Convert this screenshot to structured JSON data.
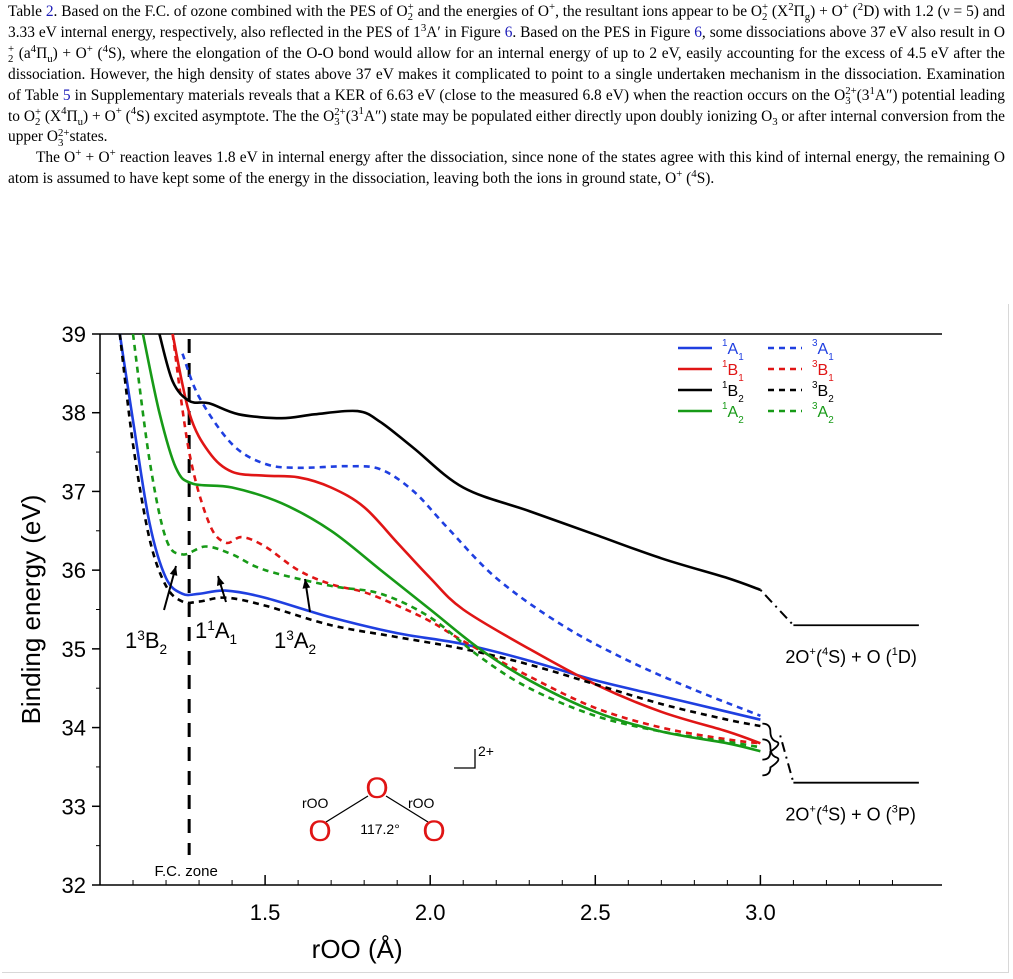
{
  "paragraphs": [
    [
      {
        "t": "text",
        "v": "Table "
      },
      {
        "t": "ref",
        "v": "2"
      },
      {
        "t": "text",
        "v": ". Based on the F.C. of ozone combined with the PES of O"
      },
      {
        "t": "subsup",
        "sub": "2",
        "sup": "+"
      },
      {
        "t": "text",
        "v": " and the energies of O"
      },
      {
        "t": "sup",
        "v": "+"
      },
      {
        "t": "text",
        "v": ", the resultant ions appear to be O"
      },
      {
        "t": "subsup",
        "sub": "2",
        "sup": "+"
      },
      {
        "t": "text",
        "v": " (X"
      },
      {
        "t": "sup",
        "v": "2"
      },
      {
        "t": "text",
        "v": "Π"
      },
      {
        "t": "sub",
        "v": "g"
      },
      {
        "t": "text",
        "v": ") + O"
      },
      {
        "t": "sup",
        "v": "+"
      },
      {
        "t": "text",
        "v": " ("
      },
      {
        "t": "sup",
        "v": "2"
      },
      {
        "t": "text",
        "v": "D) with 1.2 (ν = 5) and 3.33 eV internal energy, respectively, also reflected in the PES of 1"
      },
      {
        "t": "sup",
        "v": "3"
      },
      {
        "t": "text",
        "v": "A′ in Figure "
      },
      {
        "t": "ref",
        "v": "6"
      },
      {
        "t": "text",
        "v": ". Based on the PES in Figure "
      },
      {
        "t": "ref",
        "v": "6"
      },
      {
        "t": "text",
        "v": ", some dissociations above 37 eV also result in O"
      },
      {
        "t": "subsup",
        "sub": "2",
        "sup": "+"
      },
      {
        "t": "text",
        "v": " (a"
      },
      {
        "t": "sup",
        "v": "4"
      },
      {
        "t": "text",
        "v": "Π"
      },
      {
        "t": "sub",
        "v": "u"
      },
      {
        "t": "text",
        "v": ") + O"
      },
      {
        "t": "sup",
        "v": "+"
      },
      {
        "t": "text",
        "v": " ("
      },
      {
        "t": "sup",
        "v": "4"
      },
      {
        "t": "text",
        "v": "S), where the elongation of the O-O bond would allow for an internal energy of up to 2 eV, easily accounting for the excess of 4.5 eV after the dissociation. However, the high density of states above 37 eV makes it complicated to point to a single undertaken mechanism in the dissociation. Examination of Table "
      },
      {
        "t": "ref",
        "v": "5"
      },
      {
        "t": "text",
        "v": " in Supplementary materials reveals that a KER of 6.63 eV (close to the measured 6.8 eV) when the reaction occurs on the O"
      },
      {
        "t": "subsup",
        "sub": "3",
        "sup": "2+"
      },
      {
        "t": "text",
        "v": "(3"
      },
      {
        "t": "sup",
        "v": "1"
      },
      {
        "t": "text",
        "v": "A″) potential leading to O"
      },
      {
        "t": "subsup",
        "sub": "2",
        "sup": "+"
      },
      {
        "t": "text",
        "v": " (X"
      },
      {
        "t": "sup",
        "v": "4"
      },
      {
        "t": "text",
        "v": "Π"
      },
      {
        "t": "sub",
        "v": "u"
      },
      {
        "t": "text",
        "v": ") + O"
      },
      {
        "t": "sup",
        "v": "+"
      },
      {
        "t": "text",
        "v": " ("
      },
      {
        "t": "sup",
        "v": "4"
      },
      {
        "t": "text",
        "v": "S) excited asymptote. The the O"
      },
      {
        "t": "subsup",
        "sub": "3",
        "sup": "2+"
      },
      {
        "t": "text",
        "v": "(3"
      },
      {
        "t": "sup",
        "v": "1"
      },
      {
        "t": "text",
        "v": "A″) state may be populated either directly upon doubly ionizing O"
      },
      {
        "t": "sub",
        "v": "3"
      },
      {
        "t": "text",
        "v": " or after internal conversion from the upper O"
      },
      {
        "t": "subsup",
        "sub": "3",
        "sup": "2+"
      },
      {
        "t": "text",
        "v": "states."
      }
    ],
    [
      {
        "t": "text",
        "v": "The O"
      },
      {
        "t": "sup",
        "v": "+"
      },
      {
        "t": "text",
        "v": " + O"
      },
      {
        "t": "sup",
        "v": "+"
      },
      {
        "t": "text",
        "v": " reaction leaves 1.8 eV in internal energy after the dissociation, since none of the states agree with this kind of internal energy, the remaining O atom is assumed to have kept some of the energy in the dissociation, leaving both the ions in ground state, O"
      },
      {
        "t": "sup",
        "v": "+"
      },
      {
        "t": "text",
        "v": " ("
      },
      {
        "t": "sup",
        "v": "4"
      },
      {
        "t": "text",
        "v": "S)."
      }
    ]
  ],
  "colors": {
    "text": "#000000",
    "ref": "#1a1ab8",
    "blue": "#1f3fe0",
    "red": "#e01515",
    "black": "#000000",
    "green": "#179a17",
    "molecule": "#e01515"
  },
  "figure": {
    "legend": [
      {
        "sup": "1",
        "base": "A",
        "sub": "1",
        "color": "blue",
        "style": "solid"
      },
      {
        "sup": "3",
        "base": "A",
        "sub": "1",
        "color": "blue",
        "style": "dashed"
      },
      {
        "sup": "1",
        "base": "B",
        "sub": "1",
        "color": "red",
        "style": "solid"
      },
      {
        "sup": "3",
        "base": "B",
        "sub": "1",
        "color": "red",
        "style": "dashed"
      },
      {
        "sup": "1",
        "base": "B",
        "sub": "2",
        "color": "black",
        "style": "solid"
      },
      {
        "sup": "3",
        "base": "B",
        "sub": "2",
        "color": "black",
        "style": "dashed"
      },
      {
        "sup": "1",
        "base": "A",
        "sub": "2",
        "color": "green",
        "style": "solid"
      },
      {
        "sup": "3",
        "base": "A",
        "sub": "2",
        "color": "green",
        "style": "dashed"
      }
    ],
    "state_labels": [
      {
        "id": "13B2",
        "pre": "1",
        "sup": "3",
        "base": "B",
        "sub": "2"
      },
      {
        "id": "11A1",
        "pre": "1",
        "sup": "1",
        "base": "A",
        "sub": "1"
      },
      {
        "id": "13A2",
        "pre": "1",
        "sup": "3",
        "base": "A",
        "sub": "2"
      }
    ],
    "asymptotes": [
      {
        "id": "upper",
        "p1": "2O",
        "p1sup": "+",
        "p2": "(",
        "p2sup": "4",
        "p3": "S) + O (",
        "p3sup": "1",
        "p4": "D)",
        "energy": 35.3
      },
      {
        "id": "lower",
        "p1": "2O",
        "p1sup": "+",
        "p2": "(",
        "p2sup": "4",
        "p3": "S) + O (",
        "p3sup": "3",
        "p4": "P)",
        "energy": 33.3
      }
    ],
    "fc_zone_label": "F.C. zone",
    "charge_label": "2+",
    "molecule": {
      "atom": "O",
      "bond_label": "rOO",
      "angle_label": "117.2°"
    }
  },
  "chart_data": {
    "type": "line",
    "xlabel": "rOO (Å)",
    "ylabel": "Binding energy (eV)",
    "xlim": [
      1.0,
      3.55
    ],
    "ylim": [
      32,
      39
    ],
    "x_ticks": [
      "1.5",
      "2.0",
      "2.5",
      "3.0"
    ],
    "y_ticks": [
      "32",
      "33",
      "34",
      "35",
      "36",
      "37",
      "38",
      "39"
    ],
    "fc_zone_x": 1.27,
    "series": [
      {
        "name": "1A1",
        "color": "blue",
        "dash": false,
        "points": [
          [
            1.06,
            39.0
          ],
          [
            1.1,
            37.9
          ],
          [
            1.15,
            36.6
          ],
          [
            1.2,
            35.9
          ],
          [
            1.25,
            35.7
          ],
          [
            1.3,
            35.7
          ],
          [
            1.38,
            35.74
          ],
          [
            1.5,
            35.65
          ],
          [
            1.7,
            35.4
          ],
          [
            1.9,
            35.2
          ],
          [
            2.1,
            35.06
          ],
          [
            2.3,
            34.85
          ],
          [
            2.5,
            34.6
          ],
          [
            2.7,
            34.4
          ],
          [
            2.9,
            34.2
          ],
          [
            3.0,
            34.1
          ]
        ]
      },
      {
        "name": "3A1",
        "color": "blue",
        "dash": true,
        "points": [
          [
            1.25,
            38.75
          ],
          [
            1.3,
            38.2
          ],
          [
            1.4,
            37.6
          ],
          [
            1.5,
            37.35
          ],
          [
            1.6,
            37.3
          ],
          [
            1.75,
            37.32
          ],
          [
            1.85,
            37.28
          ],
          [
            1.95,
            37.0
          ],
          [
            2.05,
            36.55
          ],
          [
            2.2,
            35.9
          ],
          [
            2.4,
            35.3
          ],
          [
            2.6,
            34.85
          ],
          [
            2.8,
            34.48
          ],
          [
            3.0,
            34.15
          ]
        ]
      },
      {
        "name": "1B1",
        "color": "red",
        "dash": false,
        "points": [
          [
            1.22,
            39.0
          ],
          [
            1.27,
            38.0
          ],
          [
            1.33,
            37.5
          ],
          [
            1.4,
            37.25
          ],
          [
            1.5,
            37.2
          ],
          [
            1.6,
            37.18
          ],
          [
            1.7,
            37.05
          ],
          [
            1.8,
            36.8
          ],
          [
            1.9,
            36.35
          ],
          [
            2.0,
            35.9
          ],
          [
            2.1,
            35.5
          ],
          [
            2.3,
            35.0
          ],
          [
            2.5,
            34.55
          ],
          [
            2.7,
            34.2
          ],
          [
            2.9,
            33.95
          ],
          [
            3.0,
            33.8
          ]
        ]
      },
      {
        "name": "3B1",
        "color": "red",
        "dash": true,
        "points": [
          [
            1.22,
            39.0
          ],
          [
            1.27,
            37.5
          ],
          [
            1.33,
            36.6
          ],
          [
            1.38,
            36.35
          ],
          [
            1.43,
            36.42
          ],
          [
            1.5,
            36.3
          ],
          [
            1.6,
            36.0
          ],
          [
            1.7,
            35.82
          ],
          [
            1.8,
            35.72
          ],
          [
            1.9,
            35.55
          ],
          [
            2.0,
            35.35
          ],
          [
            2.1,
            35.1
          ],
          [
            2.3,
            34.65
          ],
          [
            2.5,
            34.25
          ],
          [
            2.7,
            34.0
          ],
          [
            2.9,
            33.85
          ],
          [
            3.0,
            33.8
          ]
        ]
      },
      {
        "name": "1B2",
        "color": "black",
        "dash": false,
        "points": [
          [
            1.18,
            39.0
          ],
          [
            1.22,
            38.4
          ],
          [
            1.27,
            38.15
          ],
          [
            1.33,
            38.12
          ],
          [
            1.42,
            37.98
          ],
          [
            1.55,
            37.93
          ],
          [
            1.65,
            37.98
          ],
          [
            1.78,
            38.02
          ],
          [
            1.85,
            37.88
          ],
          [
            1.95,
            37.55
          ],
          [
            2.1,
            37.05
          ],
          [
            2.3,
            36.75
          ],
          [
            2.5,
            36.45
          ],
          [
            2.7,
            36.15
          ],
          [
            2.9,
            35.9
          ],
          [
            3.0,
            35.75
          ]
        ]
      },
      {
        "name": "3B2",
        "color": "black",
        "dash": true,
        "points": [
          [
            1.06,
            39.0
          ],
          [
            1.1,
            37.6
          ],
          [
            1.15,
            36.4
          ],
          [
            1.2,
            35.8
          ],
          [
            1.25,
            35.6
          ],
          [
            1.3,
            35.6
          ],
          [
            1.38,
            35.65
          ],
          [
            1.5,
            35.55
          ],
          [
            1.7,
            35.3
          ],
          [
            1.9,
            35.15
          ],
          [
            2.1,
            35.0
          ],
          [
            2.3,
            34.8
          ],
          [
            2.5,
            34.55
          ],
          [
            2.7,
            34.3
          ],
          [
            2.9,
            34.1
          ],
          [
            3.0,
            34.02
          ]
        ]
      },
      {
        "name": "1A2",
        "color": "green",
        "dash": false,
        "points": [
          [
            1.13,
            39.0
          ],
          [
            1.18,
            38.0
          ],
          [
            1.23,
            37.3
          ],
          [
            1.28,
            37.1
          ],
          [
            1.4,
            37.05
          ],
          [
            1.55,
            36.85
          ],
          [
            1.7,
            36.5
          ],
          [
            1.85,
            36.0
          ],
          [
            2.0,
            35.5
          ],
          [
            2.15,
            35.0
          ],
          [
            2.3,
            34.6
          ],
          [
            2.5,
            34.2
          ],
          [
            2.7,
            33.95
          ],
          [
            2.9,
            33.8
          ],
          [
            3.0,
            33.7
          ]
        ]
      },
      {
        "name": "3A2",
        "color": "green",
        "dash": true,
        "points": [
          [
            1.1,
            39.0
          ],
          [
            1.15,
            37.4
          ],
          [
            1.2,
            36.4
          ],
          [
            1.25,
            36.2
          ],
          [
            1.32,
            36.3
          ],
          [
            1.4,
            36.2
          ],
          [
            1.5,
            36.0
          ],
          [
            1.7,
            35.8
          ],
          [
            1.85,
            35.7
          ],
          [
            2.0,
            35.4
          ],
          [
            2.15,
            34.9
          ],
          [
            2.3,
            34.5
          ],
          [
            2.5,
            34.15
          ],
          [
            2.7,
            33.95
          ],
          [
            2.9,
            33.82
          ],
          [
            3.0,
            33.75
          ]
        ]
      }
    ]
  }
}
